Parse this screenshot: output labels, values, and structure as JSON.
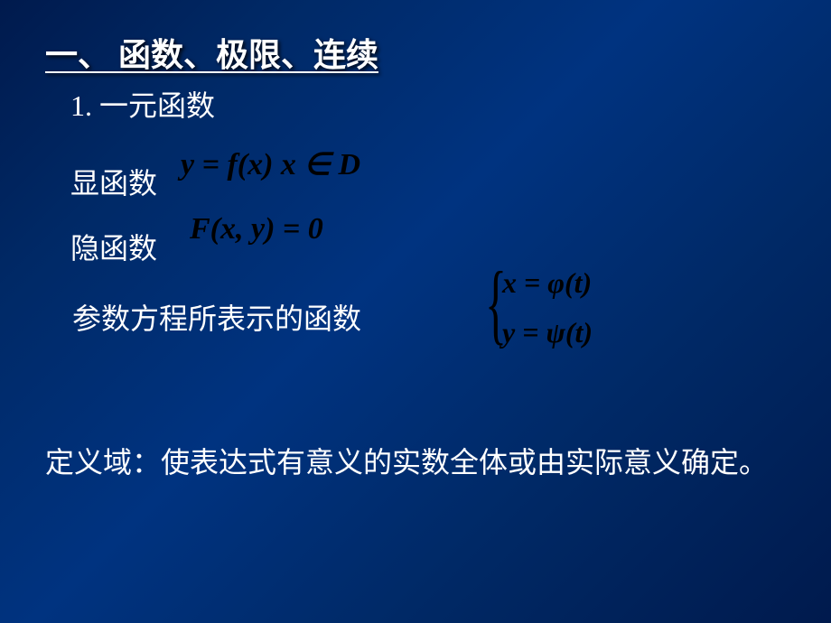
{
  "slide": {
    "title": "一、 函数、极限、连续",
    "subtitle": "1. 一元函数",
    "section1": {
      "label": "显函数",
      "formula": "y = f(x) x ∈ D"
    },
    "section2": {
      "label": "隐函数",
      "formula": "F(x, y) = 0"
    },
    "section3": {
      "label": "参数方程所表示的函数",
      "formula_line1": "x = φ(t)",
      "formula_line2": "y = ψ(t)"
    },
    "definition": "定义域：使表达式有意义的实数全体或由实际意义确定。",
    "colors": {
      "background_gradient_start": "#001a4d",
      "background_gradient_mid": "#003380",
      "background_gradient_end": "#001a4d",
      "text_color": "#ffffff",
      "formula_color": "#000000"
    },
    "typography": {
      "title_fontsize": 36,
      "body_fontsize": 32,
      "formula_fontsize": 34,
      "font_family_cn": "SimSun",
      "font_family_formula": "Times New Roman"
    }
  }
}
